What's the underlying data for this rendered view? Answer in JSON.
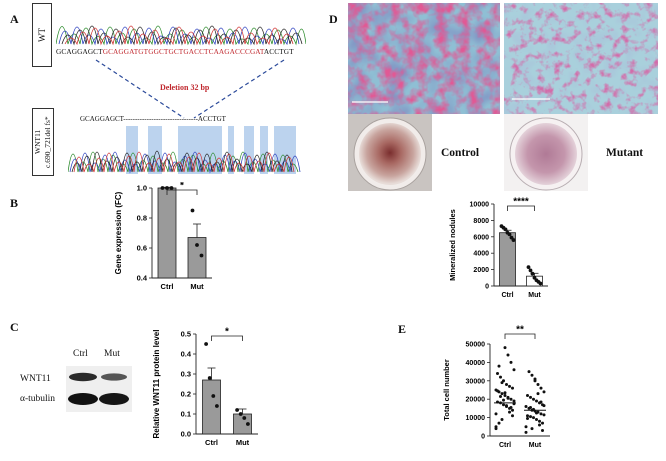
{
  "panels": {
    "A": {
      "label": "A",
      "wt_box": "WT",
      "wt_seq_prefix": "GCAGGAGCT",
      "wt_seq_deleted": "GCAGGATGTGGCTGCTGACCTCAAGACCCGAT",
      "wt_seq_suffix": "ACCTGT",
      "deletion_label": "Deletion 32 bp",
      "mut_box_line1": "WNT11",
      "mut_box_line2": "c.690_721del fs*",
      "mut_seq_prefix": "GCAGGAGCT-",
      "mut_seq_gap": "-------------------------------",
      "mut_seq_suffix": "ACCTGT",
      "colors": {
        "deleted_text": "#c0282e",
        "deletion_label": "#c0282e",
        "dashed_line": "#2b4a9a",
        "highlight": "#bcd3ee"
      }
    },
    "B": {
      "label": "B"
    },
    "C": {
      "label": "C",
      "blot_ctrl": "Ctrl",
      "blot_mut": "Mut",
      "blot_row1": "WNT11",
      "blot_row2": "α-tubulin"
    },
    "D": {
      "label": "D",
      "control_label": "Control",
      "mutant_label": "Mutant"
    },
    "E": {
      "label": "E"
    }
  },
  "chart_data": [
    {
      "id": "B",
      "type": "bar",
      "categories": [
        "Ctrl",
        "Mut"
      ],
      "values": [
        1.0,
        0.67
      ],
      "errors": [
        0.005,
        0.09
      ],
      "points": [
        [
          1.0,
          1.0,
          1.0
        ],
        [
          0.85,
          0.62,
          0.55
        ]
      ],
      "ylabel": "Gene expression (FC)",
      "ylim": [
        0.4,
        1.0
      ],
      "yticks": [
        "0.4",
        "0.6",
        "0.8",
        "1.0"
      ],
      "significance": "*",
      "bar_colors": [
        "#9a9a9a",
        "#9a9a9a"
      ]
    },
    {
      "id": "C",
      "type": "bar",
      "categories": [
        "Ctrl",
        "Mut"
      ],
      "values": [
        0.27,
        0.1
      ],
      "errors": [
        0.06,
        0.025
      ],
      "points": [
        [
          0.45,
          0.28,
          0.19,
          0.14
        ],
        [
          0.12,
          0.1,
          0.08,
          0.05
        ]
      ],
      "ylabel": "Relative WNT11 protein level",
      "ylim": [
        0.0,
        0.5
      ],
      "yticks": [
        "0.0",
        "0.1",
        "0.2",
        "0.3",
        "0.4",
        "0.5"
      ],
      "significance": "*",
      "bar_colors": [
        "#9a9a9a",
        "#9a9a9a"
      ]
    },
    {
      "id": "D",
      "type": "bar",
      "categories": [
        "Ctrl",
        "Mut"
      ],
      "values": [
        6500,
        1200
      ],
      "errors": [
        300,
        350
      ],
      "points": [
        [
          7300,
          7100,
          6900,
          6500,
          6300,
          5900,
          5600
        ],
        [
          2300,
          1900,
          1500,
          1000,
          700,
          500,
          300
        ]
      ],
      "ylabel": "Mineralized nodules",
      "ylim": [
        0,
        10000
      ],
      "yticks": [
        "0",
        "2000",
        "4000",
        "6000",
        "8000",
        "10000"
      ],
      "significance": "****",
      "bar_colors": [
        "#9a9a9a",
        "#ffffff"
      ]
    },
    {
      "id": "E",
      "type": "scatter",
      "categories": [
        "Ctrl",
        "Mut"
      ],
      "medians": [
        18000,
        14000
      ],
      "ylabel": "Total cell number",
      "ylim": [
        0,
        50000
      ],
      "yticks": [
        "0",
        "10000",
        "20000",
        "30000",
        "40000",
        "50000"
      ],
      "significance": "**"
    }
  ]
}
